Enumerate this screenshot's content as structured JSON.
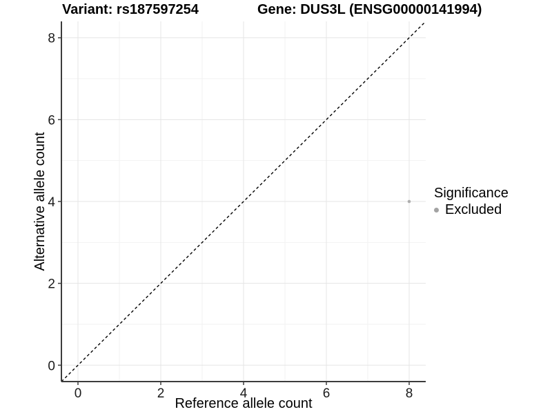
{
  "chart_data": {
    "type": "scatter",
    "title_left": "Variant: rs187597254",
    "title_right": "Gene: DUS3L (ENSG00000141994)",
    "xlabel": "Reference allele count",
    "ylabel": "Alternative allele count",
    "xlim": [
      -0.4,
      8.4
    ],
    "ylim": [
      -0.4,
      8.4
    ],
    "x_ticks": [
      0,
      2,
      4,
      6,
      8
    ],
    "y_ticks": [
      0,
      2,
      4,
      6,
      8
    ],
    "x_minor_ticks": [
      1,
      3,
      5,
      7
    ],
    "y_minor_ticks": [
      1,
      3,
      5,
      7
    ],
    "grid": "major+minor",
    "legend_position": "right",
    "series": [
      {
        "name": "Excluded",
        "color": "#aeaeae",
        "points": [
          [
            8,
            4
          ]
        ],
        "point_radius": 2.3
      }
    ],
    "annotations": [
      {
        "type": "line",
        "style": "dashed",
        "color": "#000000",
        "from": [
          -0.4,
          -0.4
        ],
        "to": [
          8.4,
          8.4
        ]
      }
    ],
    "colors": {
      "background": "#ffffff",
      "grid_major": "#e5e5e5",
      "grid_minor": "#f2f2f2",
      "axis_line": "#3c3c3c",
      "tick_mark": "#3c3c3c",
      "tick_text": "#1a1a1a"
    }
  },
  "legend": {
    "title": "Significance",
    "items": [
      {
        "label": "Excluded",
        "color": "#a3a3a3"
      }
    ]
  }
}
